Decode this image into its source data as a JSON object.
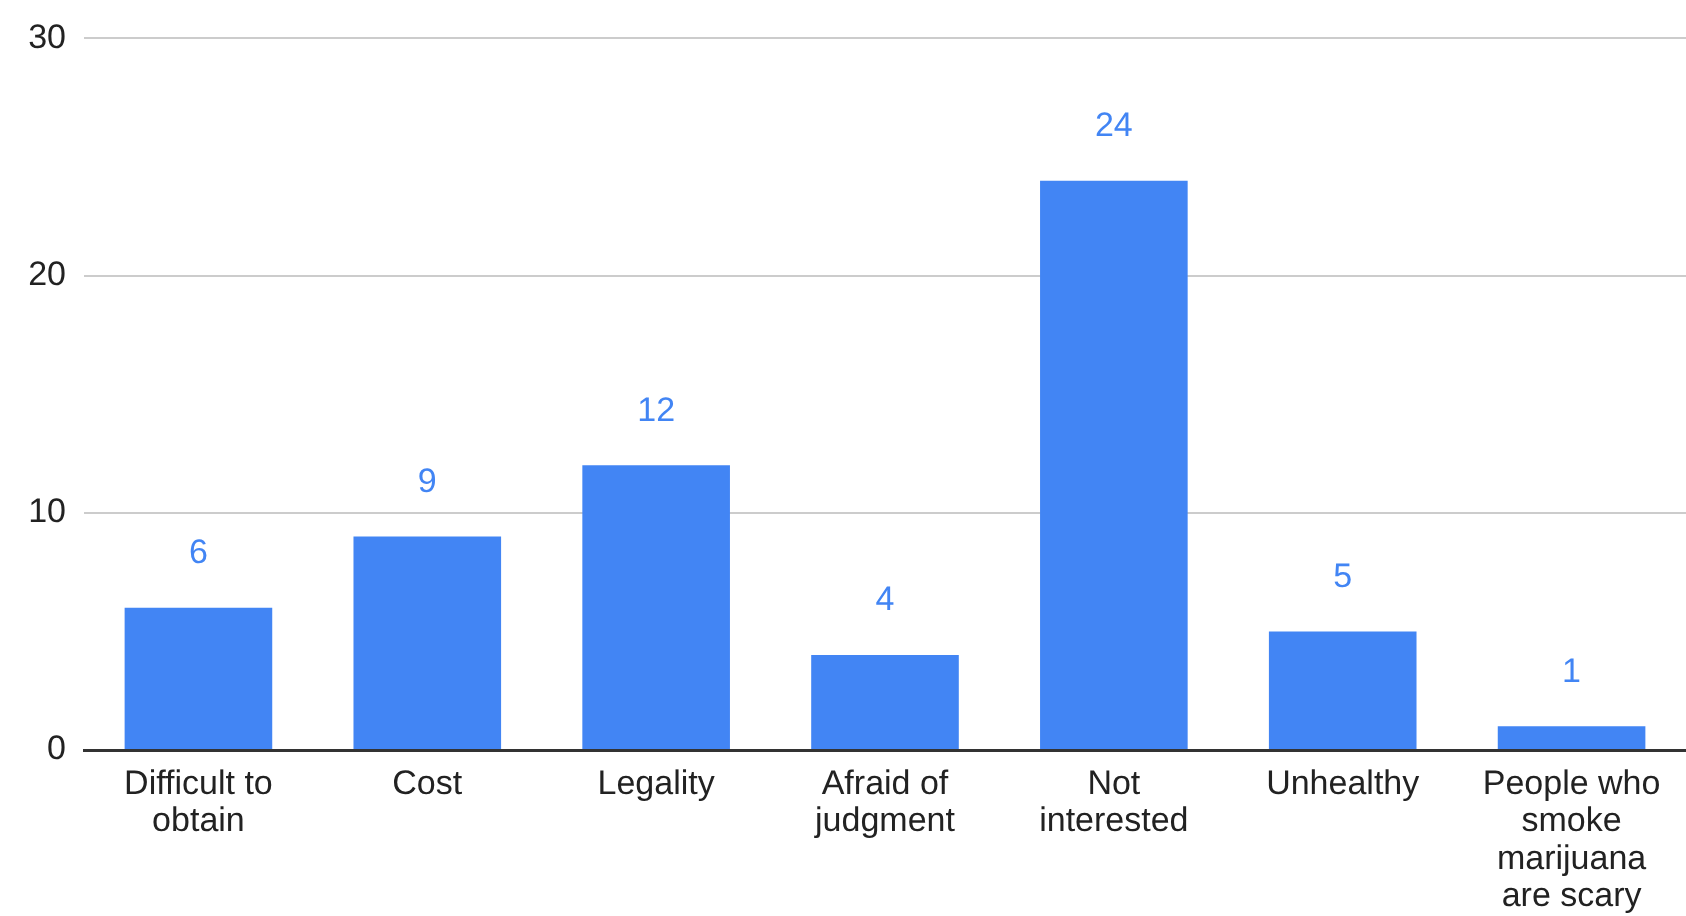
{
  "chart_data": {
    "type": "bar",
    "categories": [
      "Difficult to obtain",
      "Cost",
      "Legality",
      "Afraid of judgment",
      "Not interested",
      "Unhealthy",
      "People who smoke marijuana are scary"
    ],
    "values": [
      6,
      9,
      12,
      4,
      24,
      5,
      1
    ],
    "color": "#4285f4",
    "ylim": [
      0,
      30
    ],
    "yticks": [
      0,
      10,
      20,
      30
    ],
    "grid": "y",
    "data_labels": true
  }
}
